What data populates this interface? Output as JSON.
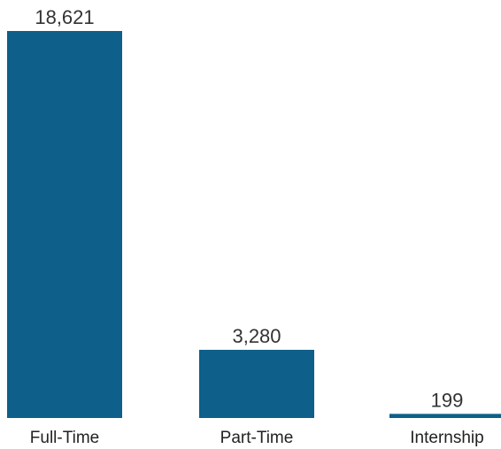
{
  "chart_data": {
    "type": "bar",
    "categories": [
      "Full-Time",
      "Part-Time",
      "Internship"
    ],
    "values": [
      18621,
      3280,
      199
    ],
    "value_labels": [
      "18,621",
      "3,280",
      "199"
    ],
    "title": "",
    "xlabel": "",
    "ylabel": "",
    "ylim": [
      0,
      18621
    ],
    "grid": false,
    "legend": "none",
    "bar_color": "#0e5f8a"
  }
}
